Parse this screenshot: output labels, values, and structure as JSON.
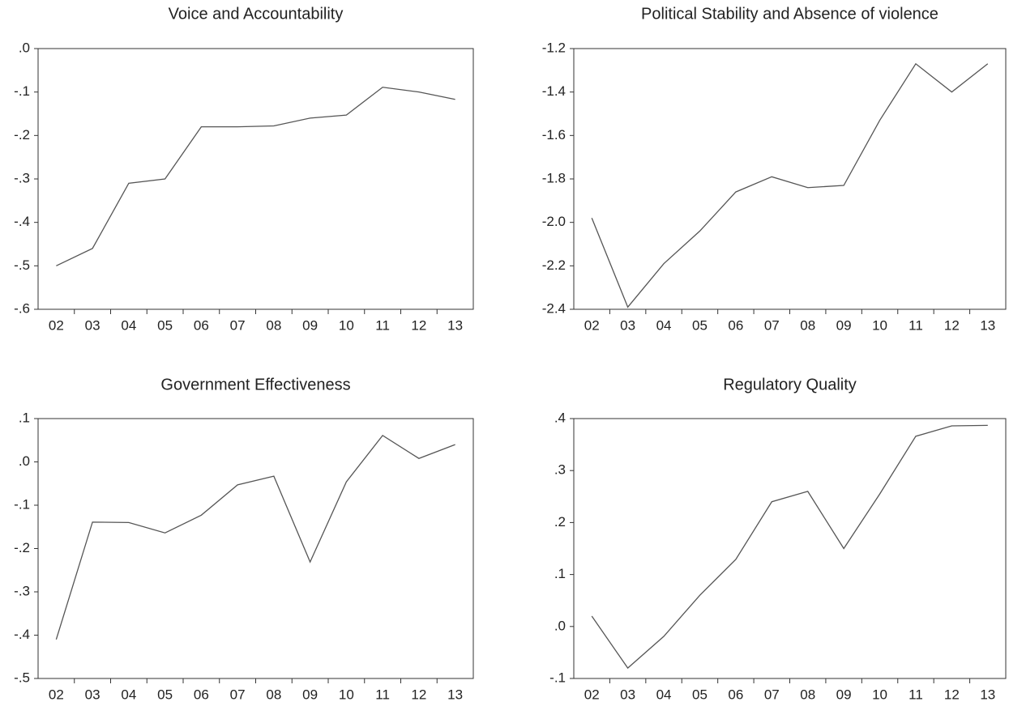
{
  "chart_data": [
    {
      "type": "line",
      "title": "Voice and Accountability",
      "categories": [
        "02",
        "03",
        "04",
        "05",
        "06",
        "07",
        "08",
        "09",
        "10",
        "11",
        "12",
        "13"
      ],
      "values": [
        -0.5,
        -0.46,
        -0.31,
        -0.3,
        -0.18,
        -0.18,
        -0.178,
        -0.16,
        -0.153,
        -0.089,
        -0.1,
        -0.117
      ],
      "color": "#555555",
      "ylim": [
        -0.6,
        0
      ],
      "yticks": [
        {
          "value": 0,
          "label": ".0"
        },
        {
          "value": -0.1,
          "label": "-.1"
        },
        {
          "value": -0.2,
          "label": "-.2"
        },
        {
          "value": -0.3,
          "label": "-.3"
        },
        {
          "value": -0.4,
          "label": "-.4"
        },
        {
          "value": -0.5,
          "label": "-.5"
        },
        {
          "value": -0.6,
          "label": "-.6"
        }
      ]
    },
    {
      "type": "line",
      "title": "Political Stability and Absence of violence",
      "categories": [
        "02",
        "03",
        "04",
        "05",
        "06",
        "07",
        "08",
        "09",
        "10",
        "11",
        "12",
        "13"
      ],
      "values": [
        -1.98,
        -2.39,
        -2.19,
        -2.04,
        -1.86,
        -1.79,
        -1.84,
        -1.83,
        -1.53,
        -1.27,
        -1.4,
        -1.27
      ],
      "color": "#555555",
      "ylim": [
        -2.4,
        -1.2
      ],
      "yticks": [
        -1.2,
        -1.4,
        -1.6,
        -1.8,
        {
          "value": -2.0,
          "label": "-2.0"
        },
        -2.2,
        -2.4
      ]
    },
    {
      "type": "line",
      "title": "Government Effectiveness",
      "categories": [
        "02",
        "03",
        "04",
        "05",
        "06",
        "07",
        "08",
        "09",
        "10",
        "11",
        "12",
        "13"
      ],
      "values": [
        -0.41,
        -0.139,
        -0.14,
        -0.164,
        -0.123,
        -0.053,
        -0.033,
        -0.231,
        -0.046,
        0.061,
        0.008,
        0.04
      ],
      "color": "#555555",
      "ylim": [
        -0.5,
        0.1
      ],
      "yticks": [
        {
          "value": 0.1,
          "label": ".1"
        },
        {
          "value": 0,
          "label": ".0"
        },
        {
          "value": -0.1,
          "label": "-.1"
        },
        {
          "value": -0.2,
          "label": "-.2"
        },
        {
          "value": -0.3,
          "label": "-.3"
        },
        {
          "value": -0.4,
          "label": "-.4"
        },
        {
          "value": -0.5,
          "label": "-.5"
        }
      ]
    },
    {
      "type": "line",
      "title": "Regulatory Quality",
      "categories": [
        "02",
        "03",
        "04",
        "05",
        "06",
        "07",
        "08",
        "09",
        "10",
        "11",
        "12",
        "13"
      ],
      "values": [
        0.02,
        -0.08,
        -0.019,
        0.06,
        0.129,
        0.24,
        0.26,
        0.15,
        0.255,
        0.366,
        0.386,
        0.387
      ],
      "color": "#555555",
      "ylim": [
        -0.1,
        0.4
      ],
      "yticks": [
        {
          "value": 0.4,
          "label": ".4"
        },
        {
          "value": 0.3,
          "label": ".3"
        },
        {
          "value": 0.2,
          "label": ".2"
        },
        {
          "value": 0.1,
          "label": ".1"
        },
        {
          "value": 0,
          "label": ".0"
        },
        {
          "value": -0.1,
          "label": "-.1"
        }
      ]
    }
  ]
}
